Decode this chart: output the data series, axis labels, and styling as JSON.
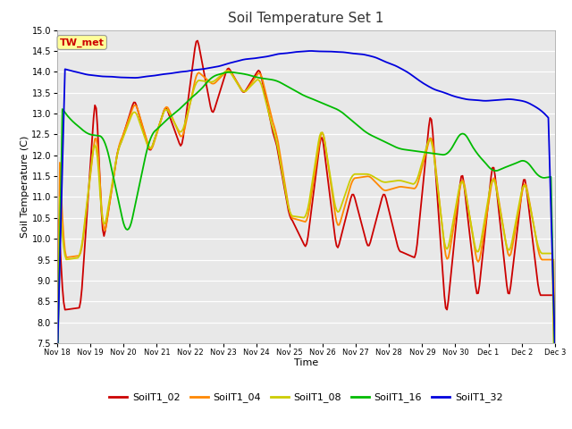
{
  "title": "Soil Temperature Set 1",
  "xlabel": "Time",
  "ylabel": "Soil Temperature (C)",
  "ylim": [
    7.5,
    15.0
  ],
  "yticks": [
    7.5,
    8.0,
    8.5,
    9.0,
    9.5,
    10.0,
    10.5,
    11.0,
    11.5,
    12.0,
    12.5,
    13.0,
    13.5,
    14.0,
    14.5,
    15.0
  ],
  "colors": {
    "SoilT1_02": "#cc0000",
    "SoilT1_04": "#ff8800",
    "SoilT1_08": "#cccc00",
    "SoilT1_16": "#00bb00",
    "SoilT1_32": "#0000dd"
  },
  "annotation_text": "TW_met",
  "annotation_color": "#cc0000",
  "annotation_bg": "#ffff99",
  "fig_bg": "#ffffff",
  "plot_bg": "#e8e8e8",
  "grid_color": "#ffffff",
  "title_fontsize": 11,
  "axis_fontsize": 8,
  "tick_fontsize": 7,
  "legend_fontsize": 8,
  "x_tick_labels": [
    "Nov 18",
    "Nov 19",
    "Nov 20",
    "Nov 21",
    "Nov 22",
    "Nov 23",
    "Nov 24",
    "Nov 25",
    "Nov 26",
    "Nov 27",
    "Nov 28",
    "Nov 29",
    "Nov 30",
    "Dec 1",
    "Dec 2",
    "Dec 3"
  ]
}
